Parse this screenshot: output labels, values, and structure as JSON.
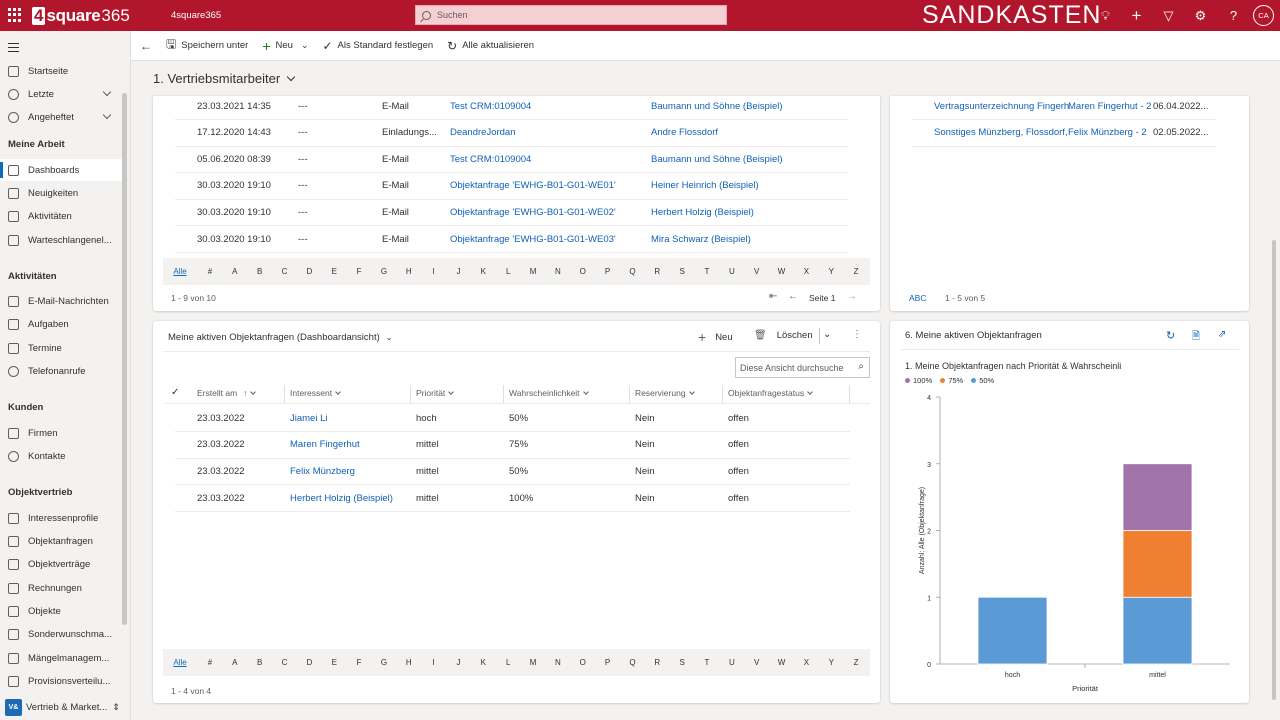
{
  "header": {
    "logo_box": "4",
    "logo_word": "square",
    "logo_num": "365",
    "app_name": "4square365",
    "search_placeholder": "Suchen",
    "environment": "SANDKASTEN",
    "avatar": "CA"
  },
  "nav": {
    "top_items": [
      {
        "label": "Startseite",
        "icon": "home-icon"
      },
      {
        "label": "Letzte",
        "icon": "clock-icon"
      },
      {
        "label": "Angeheftet",
        "icon": "pin-icon"
      }
    ],
    "groups": [
      {
        "title": "Meine Arbeit",
        "items": [
          "Dashboards",
          "Neuigkeiten",
          "Aktivitäten",
          "Warteschlangenel..."
        ]
      },
      {
        "title": "Aktivitäten",
        "items": [
          "E-Mail-Nachrichten",
          "Aufgaben",
          "Termine",
          "Telefonanrufe"
        ]
      },
      {
        "title": "Kunden",
        "items": [
          "Firmen",
          "Kontakte"
        ]
      },
      {
        "title": "Objektvertrieb",
        "items": [
          "Interessenprofile",
          "Objektanfragen",
          "Objektverträge",
          "Rechnungen",
          "Objekte",
          "Sonderwunschma...",
          "Mängelmanagem...",
          "Provisionsverteilu..."
        ]
      }
    ],
    "area_badge": "V&",
    "area_label": "Vertrieb & Market..."
  },
  "commands": {
    "save_as": "Speichern unter",
    "new": "Neu",
    "set_default": "Als Standard festlegen",
    "refresh_all": "Alle aktualisieren"
  },
  "page_title": "1. Vertriebsmitarbeiter",
  "activities": {
    "rows": [
      {
        "date": "23.03.2021 14:35",
        "dash": "---",
        "type": "E-Mail",
        "subject": "Test CRM:0109004",
        "regarding": "Baumann und Söhne (Beispiel)"
      },
      {
        "date": "17.12.2020 14:43",
        "dash": "---",
        "type": "Einladungs...",
        "subject": "DeandreJordan",
        "regarding": "Andre Flossdorf"
      },
      {
        "date": "05.06.2020 08:39",
        "dash": "---",
        "type": "E-Mail",
        "subject": "Test CRM:0109004",
        "regarding": "Baumann und Söhne (Beispiel)"
      },
      {
        "date": "30.03.2020 19:10",
        "dash": "---",
        "type": "E-Mail",
        "subject": "Objektanfrage 'EWHG-B01-G01-WE01'",
        "regarding": "Heiner Heinrich (Beispiel)"
      },
      {
        "date": "30.03.2020 19:10",
        "dash": "---",
        "type": "E-Mail",
        "subject": "Objektanfrage 'EWHG-B01-G01-WE02'",
        "regarding": "Herbert Holzig (Beispiel)"
      },
      {
        "date": "30.03.2020 19:10",
        "dash": "---",
        "type": "E-Mail",
        "subject": "Objektanfrage 'EWHG-B01-G01-WE03'",
        "regarding": "Mira Schwarz (Beispiel)"
      }
    ],
    "count": "1 - 9 von 10",
    "page": "Seite 1"
  },
  "alphabet": [
    "Alle",
    "#",
    "A",
    "B",
    "C",
    "D",
    "E",
    "F",
    "G",
    "H",
    "I",
    "J",
    "K",
    "L",
    "M",
    "N",
    "O",
    "P",
    "Q",
    "R",
    "S",
    "T",
    "U",
    "V",
    "W",
    "X",
    "Y",
    "Z"
  ],
  "contracts": {
    "rows": [
      {
        "name": "Vertragsunterzeichnung Fingerh",
        "contact": "Maren Fingerhut - 2",
        "date": "06.04.2022..."
      },
      {
        "name": "Sonstiges Münzberg, Flossdorf,",
        "contact": "Felix Münzberg - 2",
        "date": "02.05.2022..."
      }
    ],
    "abc": "ABC",
    "count": "1 - 5 von 5"
  },
  "requests": {
    "title": "Meine aktiven Objektanfragen (Dashboardansicht)",
    "new_label": "Neu",
    "delete_label": "Löschen",
    "search_placeholder": "Diese Ansicht durchsuche",
    "columns": [
      "Erstellt am",
      "Interessent",
      "Priorität",
      "Wahrscheinlichkeit",
      "Reservierung",
      "Objektanfragestatus"
    ],
    "sort_arrow": "↑",
    "rows": [
      {
        "created": "23.03.2022",
        "interested": "Jiamei Li",
        "priority": "hoch",
        "probability": "50%",
        "reservation": "Nein",
        "status": "offen"
      },
      {
        "created": "23.03.2022",
        "interested": "Maren Fingerhut",
        "priority": "mittel",
        "probability": "75%",
        "reservation": "Nein",
        "status": "offen"
      },
      {
        "created": "23.03.2022",
        "interested": "Felix Münzberg",
        "priority": "mittel",
        "probability": "50%",
        "reservation": "Nein",
        "status": "offen"
      },
      {
        "created": "23.03.2022",
        "interested": "Herbert Holzig (Beispiel)",
        "priority": "mittel",
        "probability": "100%",
        "reservation": "Nein",
        "status": "offen"
      }
    ],
    "count": "1 - 4 von 4"
  },
  "chart_card": {
    "title": "6. Meine aktiven Objektanfragen"
  },
  "chart_data": {
    "type": "bar",
    "stacked": true,
    "title": "1. Meine Objektanfragen nach Priorität & Wahrscheinli",
    "categories": [
      "hoch",
      "mittel"
    ],
    "series": [
      {
        "name": "100%",
        "color": "#a074a9",
        "values": [
          0,
          1
        ]
      },
      {
        "name": "75%",
        "color": "#ef7f31",
        "values": [
          0,
          1
        ]
      },
      {
        "name": "50%",
        "color": "#5b9bd5",
        "values": [
          1,
          1
        ]
      }
    ],
    "xlabel": "Priorität",
    "ylabel": "Anzahl: Alle (Objektanfrage)",
    "ylim": [
      0,
      4
    ],
    "yticks": [
      "0",
      "1",
      "2",
      "3",
      "4"
    ],
    "legend": "top-left"
  }
}
